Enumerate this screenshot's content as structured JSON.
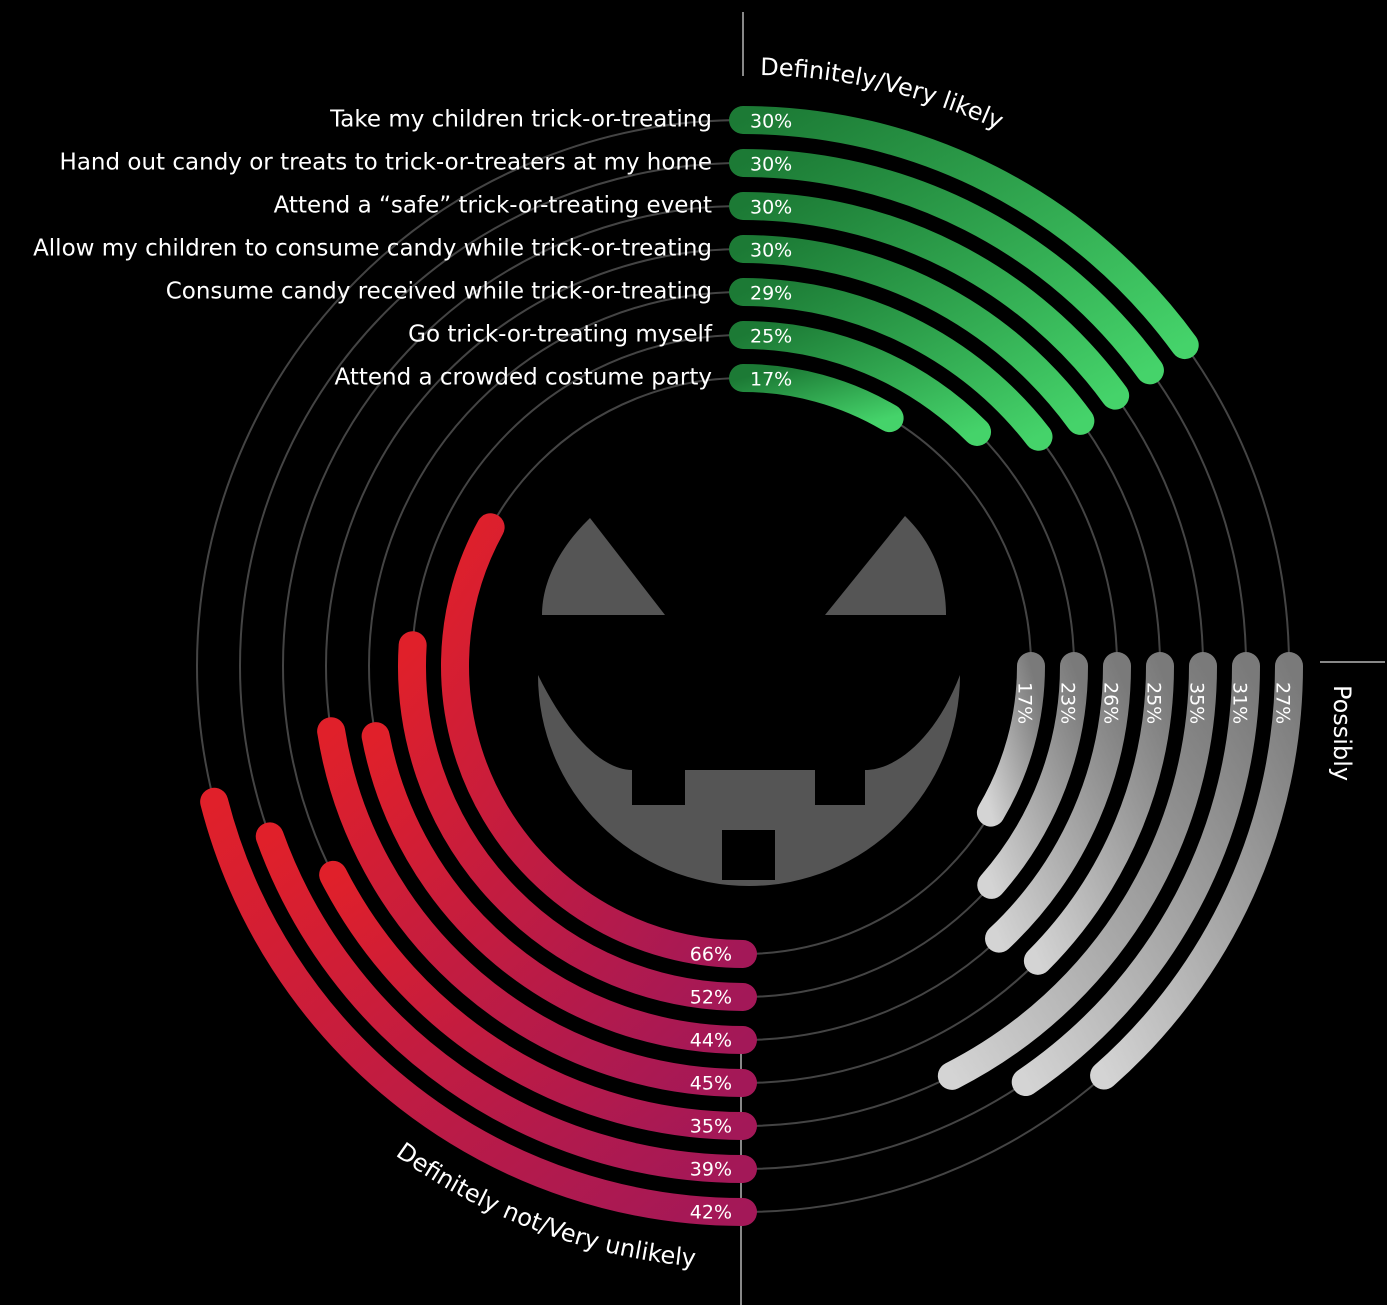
{
  "chart_data": {
    "type": "radial-bar",
    "categories": [
      "Take my children trick-or-treating",
      "Hand out candy or treats to trick-or-treaters at my home",
      "Attend a “safe” trick-or-treating event",
      "Allow my children to consume candy while trick-or-treating",
      "Consume candy received while trick-or-treating",
      "Go trick-or-treating myself",
      "Attend a crowded costume party"
    ],
    "series": [
      {
        "name": "Definitely/Very likely",
        "color": "#2fb24f",
        "values": [
          30,
          30,
          30,
          30,
          29,
          25,
          17
        ],
        "value_labels": [
          "30%",
          "30%",
          "30%",
          "30%",
          "29%",
          "25%",
          "17%"
        ]
      },
      {
        "name": "Possibly",
        "color": "#9a9a9a",
        "values": [
          27,
          31,
          35,
          25,
          26,
          23,
          17
        ],
        "value_labels": [
          "27%",
          "31%",
          "35%",
          "25%",
          "26%",
          "23%",
          "17%"
        ]
      },
      {
        "name": "Definitely not/Very unlikely",
        "color": "#d61f30",
        "values": [
          42,
          39,
          35,
          45,
          44,
          52,
          66
        ],
        "value_labels": [
          "42%",
          "39%",
          "35%",
          "45%",
          "44%",
          "52%",
          "66%"
        ]
      }
    ]
  }
}
